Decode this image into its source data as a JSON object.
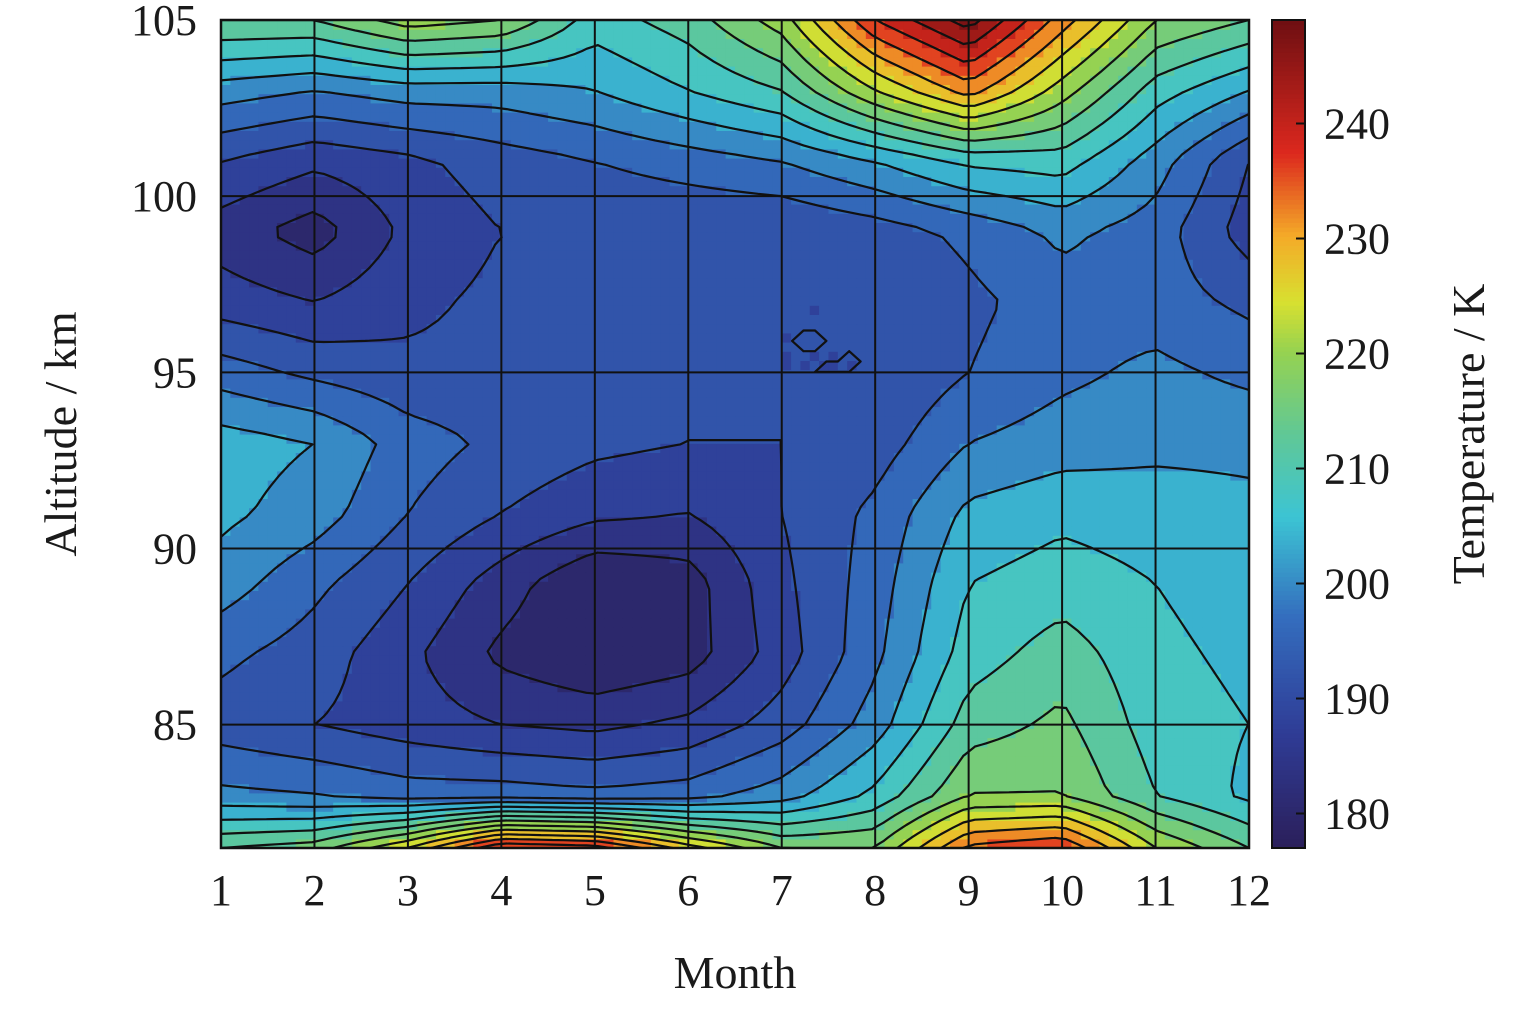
{
  "chart_data": {
    "type": "heatmap",
    "subtype": "filled-contour",
    "title": "",
    "xlabel": "Month",
    "ylabel": "Altitude / km",
    "x": [
      1,
      2,
      3,
      4,
      5,
      6,
      7,
      8,
      9,
      10,
      11,
      12
    ],
    "y": [
      81.5,
      83,
      85,
      87,
      89,
      91,
      93,
      95,
      97,
      99,
      101,
      103,
      105
    ],
    "xlim": [
      1,
      12
    ],
    "ylim": [
      81.5,
      105
    ],
    "xticks": [
      "1",
      "2",
      "3",
      "4",
      "5",
      "6",
      "7",
      "8",
      "9",
      "10",
      "11",
      "12"
    ],
    "yticks": [
      "85",
      "90",
      "95",
      "100",
      "105"
    ],
    "grid": true,
    "z": [
      [
        214,
        216,
        226,
        242,
        240,
        228,
        218,
        218,
        235,
        238,
        222,
        214
      ],
      [
        199,
        198,
        196,
        196,
        195,
        196,
        200,
        207,
        218,
        218,
        210,
        205
      ],
      [
        192,
        190,
        188,
        186,
        185,
        187,
        192,
        200,
        212,
        215,
        208,
        206
      ],
      [
        195,
        192,
        187,
        181,
        178,
        180,
        188,
        197,
        208,
        212,
        207,
        205
      ],
      [
        200,
        195,
        190,
        184,
        178,
        180,
        189,
        196,
        206,
        208,
        206,
        204
      ],
      [
        203,
        200,
        194,
        190,
        187,
        186,
        190,
        195,
        203,
        205,
        204,
        203
      ],
      [
        204,
        202,
        196,
        193,
        191,
        190,
        190,
        192,
        198,
        200,
        201,
        201
      ],
      [
        196,
        193,
        191,
        191,
        191,
        191,
        190,
        190,
        194,
        197,
        199,
        197
      ],
      [
        188,
        186,
        189,
        191,
        191,
        191,
        190,
        190,
        193,
        196,
        196,
        193
      ],
      [
        184,
        180,
        187,
        190,
        190,
        190,
        190,
        192,
        195,
        199,
        196,
        188
      ],
      [
        190,
        187,
        189,
        192,
        194,
        196,
        198,
        202,
        207,
        208,
        200,
        190
      ],
      [
        200,
        198,
        200,
        200,
        202,
        206,
        210,
        222,
        232,
        220,
        208,
        202
      ],
      [
        214,
        214,
        220,
        218,
        208,
        212,
        220,
        238,
        248,
        232,
        218,
        214
      ]
    ],
    "colorbar": {
      "label": "Temperature / K",
      "ticks": [
        "180",
        "190",
        "200",
        "210",
        "220",
        "230",
        "240"
      ],
      "tick_values": [
        180,
        190,
        200,
        210,
        220,
        230,
        240
      ],
      "range": [
        177,
        249
      ]
    },
    "contour_levels": [
      178,
      182,
      186,
      190,
      194,
      198,
      202,
      206,
      210,
      214,
      218,
      222,
      226,
      230,
      234,
      238,
      242,
      246
    ],
    "colors": {
      "low": "#2b1f5a",
      "mid_low": "#2f4fa8",
      "mid": "#3cc4d4",
      "mid_high": "#d8e030",
      "high": "#cc1d1d",
      "max": "#6e0f12",
      "contour_line": "#111111"
    }
  }
}
